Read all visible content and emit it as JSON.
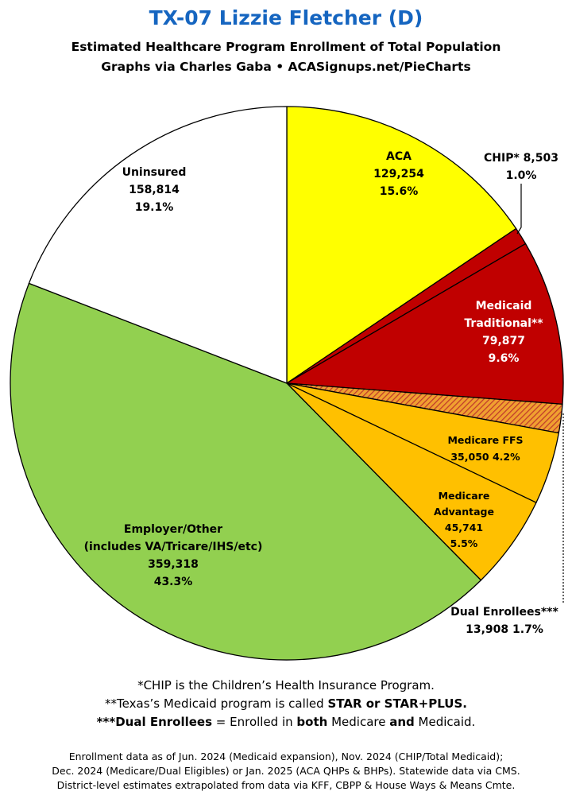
{
  "title": "TX-07 Lizzie Fletcher (D)",
  "subtitle1": "Estimated Healthcare Program Enrollment of Total Population",
  "subtitle2": "Graphs via Charles Gaba  •  ACASignups.net/PieCharts",
  "chart_data": {
    "type": "pie",
    "start": "12 o'clock, clockwise",
    "slices": [
      {
        "key": "aca",
        "label": "ACA",
        "value": 129254,
        "value_text": "129,254",
        "percent": 15.6,
        "percent_text": "15.6%",
        "color": "#ffff00",
        "pattern": "none"
      },
      {
        "key": "chip",
        "label": "CHIP* 8,503",
        "value": 8503,
        "value_text": "8,503",
        "percent": 1.0,
        "percent_text": "1.0%",
        "color": "#c00000",
        "pattern": "none"
      },
      {
        "key": "medicaid",
        "label_lines": [
          "Medicaid",
          "Traditional**"
        ],
        "value": 79877,
        "value_text": "79,877",
        "percent": 9.6,
        "percent_text": "9.6%",
        "color": "#c00000",
        "pattern": "none"
      },
      {
        "key": "dual",
        "label": "Dual Enrollees***",
        "value": 13908,
        "value_text": "13,908",
        "percent": 1.7,
        "percent_text": "1.7%",
        "value_line": "13,908 1.7%",
        "color": "#e8700a",
        "pattern": "hatch"
      },
      {
        "key": "ffs",
        "label": "Medicare FFS",
        "value": 35050,
        "value_text": "35,050",
        "percent": 4.2,
        "percent_text": "4.2%",
        "value_line": "35,050 4.2%",
        "color": "#ffc000",
        "pattern": "none"
      },
      {
        "key": "ma",
        "label_lines": [
          "Medicare",
          "Advantage"
        ],
        "value": 45741,
        "value_text": "45,741",
        "percent": 5.5,
        "percent_text": "5.5%",
        "color": "#ffc000",
        "pattern": "none"
      },
      {
        "key": "employer",
        "label_lines": [
          "Employer/Other",
          "(includes VA/Tricare/IHS/etc)"
        ],
        "value": 359318,
        "value_text": "359,318",
        "percent": 43.3,
        "percent_text": "43.3%",
        "color": "#92d050",
        "pattern": "none"
      },
      {
        "key": "uninsured",
        "label": "Uninsured",
        "value": 158814,
        "value_text": "158,814",
        "percent": 19.1,
        "percent_text": "19.1%",
        "color": "#ffffff",
        "pattern": "none"
      }
    ]
  },
  "notes": {
    "line1": "*CHIP is the Children’s Health Insurance Program.",
    "line2_a": "**Texas’s Medicaid program is called ",
    "line2_b": "STAR or STAR+PLUS.",
    "line3_a": "***Dual Enrollees",
    "line3_b": " = Enrolled in ",
    "line3_c": "both",
    "line3_d": " Medicare ",
    "line3_e": "and",
    "line3_f": " Medicaid."
  },
  "footer": {
    "line1": "Enrollment data as of Jun. 2024 (Medicaid expansion), Nov. 2024 (CHIP/Total Medicaid);",
    "line2": "Dec. 2024 (Medicare/Dual Eligibles) or Jan. 2025 (ACA QHPs & BHPs). Statewide data via CMS.",
    "line3": "District-level estimates extrapolated from data via KFF, CBPP & House Ways & Means Cmte."
  }
}
